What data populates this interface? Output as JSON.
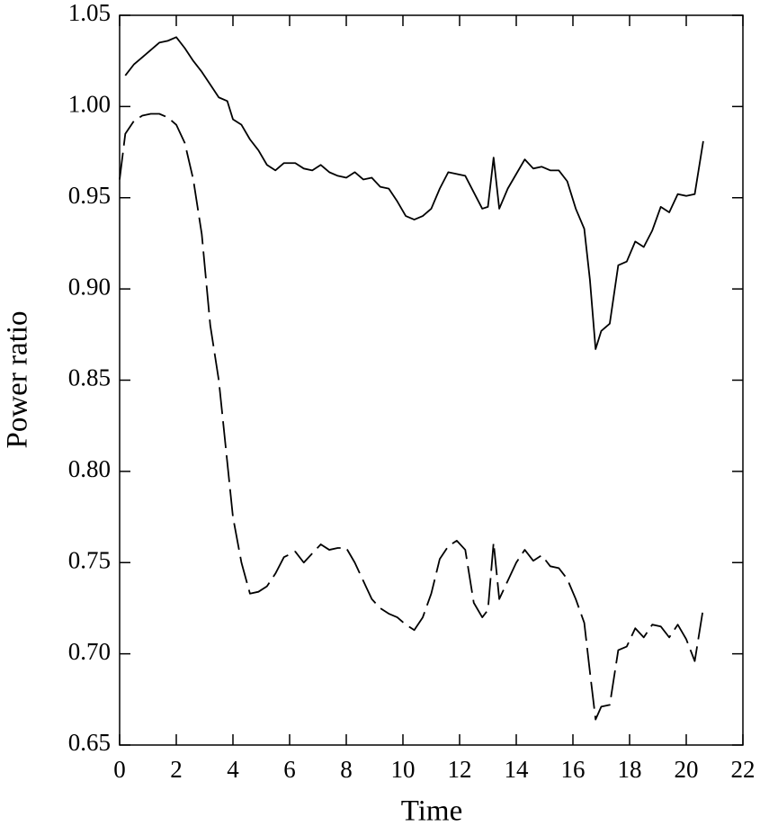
{
  "chart_data": {
    "type": "line",
    "xlabel": "Time",
    "ylabel": "Power ratio",
    "x": [
      0,
      0.2,
      0.5,
      0.8,
      1.1,
      1.4,
      1.7,
      2.0,
      2.3,
      2.6,
      2.9,
      3.2,
      3.5,
      3.8,
      4.0,
      4.3,
      4.6,
      4.9,
      5.2,
      5.5,
      5.8,
      6.2,
      6.5,
      6.8,
      7.1,
      7.4,
      7.7,
      8.0,
      8.3,
      8.6,
      8.9,
      9.2,
      9.5,
      9.8,
      10.1,
      10.4,
      10.7,
      11.0,
      11.3,
      11.6,
      11.9,
      12.2,
      12.5,
      12.8,
      13.0,
      13.2,
      13.4,
      13.7,
      14.0,
      14.3,
      14.6,
      14.9,
      15.2,
      15.5,
      15.8,
      16.1,
      16.4,
      16.6,
      16.8,
      17.0,
      17.3,
      17.6,
      17.9,
      18.2,
      18.5,
      18.8,
      19.1,
      19.4,
      19.7,
      20.0,
      20.3,
      20.6
    ],
    "series": [
      {
        "color": "#000000",
        "style": "solid",
        "values": [
          null,
          1.017,
          1.023,
          1.027,
          1.031,
          1.035,
          1.036,
          1.038,
          1.032,
          1.025,
          1.019,
          1.012,
          1.005,
          1.003,
          0.993,
          0.99,
          0.982,
          0.976,
          0.968,
          0.965,
          0.969,
          0.969,
          0.966,
          0.965,
          0.968,
          0.964,
          0.962,
          0.961,
          0.964,
          0.96,
          0.961,
          0.956,
          0.955,
          0.948,
          0.94,
          0.938,
          0.94,
          0.944,
          0.955,
          0.964,
          0.963,
          0.962,
          0.953,
          0.944,
          0.945,
          0.972,
          0.944,
          0.955,
          0.963,
          0.971,
          0.966,
          0.967,
          0.965,
          0.965,
          0.959,
          0.944,
          0.933,
          0.905,
          0.867,
          0.877,
          0.881,
          0.913,
          0.915,
          0.926,
          0.923,
          0.932,
          0.945,
          0.942,
          0.952,
          0.951,
          0.952,
          0.981
        ]
      },
      {
        "color": "#000000",
        "style": "dashed",
        "values": [
          0.96,
          0.985,
          0.992,
          0.995,
          0.996,
          0.996,
          0.994,
          0.99,
          0.98,
          0.96,
          0.93,
          0.88,
          0.85,
          0.805,
          0.775,
          0.75,
          0.733,
          0.734,
          0.737,
          0.744,
          0.753,
          0.756,
          0.75,
          0.755,
          0.76,
          0.757,
          0.758,
          0.758,
          0.75,
          0.74,
          0.73,
          0.725,
          0.722,
          0.72,
          0.716,
          0.713,
          0.72,
          0.733,
          0.752,
          0.759,
          0.762,
          0.757,
          0.728,
          0.72,
          0.724,
          0.761,
          0.73,
          0.74,
          0.75,
          0.757,
          0.751,
          0.754,
          0.748,
          0.747,
          0.741,
          0.73,
          0.717,
          0.69,
          0.664,
          0.671,
          0.672,
          0.702,
          0.704,
          0.714,
          0.709,
          0.716,
          0.715,
          0.709,
          0.716,
          0.708,
          0.696,
          0.725
        ]
      }
    ],
    "xlim": [
      0,
      22
    ],
    "xticks": [
      0,
      2,
      4,
      6,
      8,
      10,
      12,
      14,
      16,
      18,
      20,
      22
    ],
    "ylim": [
      0.65,
      1.05
    ],
    "yticks": [
      0.65,
      {
        "value": 0.7,
        "label": "0.70"
      },
      0.75,
      {
        "value": 0.8,
        "label": "0.80"
      },
      0.85,
      {
        "value": 0.9,
        "label": "0.90"
      },
      0.95,
      {
        "value": 1,
        "label": "1.00"
      },
      1.05
    ],
    "grid": false
  }
}
